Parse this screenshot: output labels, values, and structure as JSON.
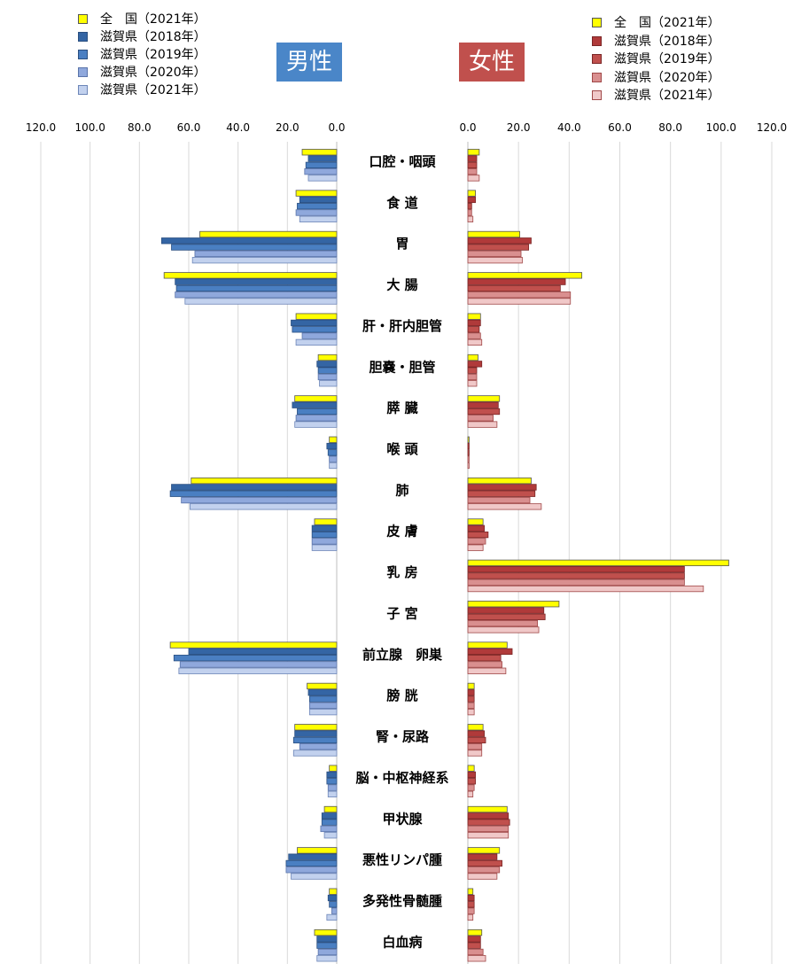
{
  "male_panel": {
    "title": "男性",
    "title_bg": "#4a86c8",
    "legend": [
      {
        "label": "全　国（2021年）",
        "color": "#ffff00",
        "border": "#555555"
      },
      {
        "label": "滋賀県（2018年）",
        "color": "#3465a4",
        "border": "#2a4f80"
      },
      {
        "label": "滋賀県（2019年）",
        "color": "#4a7fc2",
        "border": "#2a4f80"
      },
      {
        "label": "滋賀県（2020年）",
        "color": "#8fa8dc",
        "border": "#5a74aa"
      },
      {
        "label": "滋賀県（2021年）",
        "color": "#c2d1ee",
        "border": "#6d86b8"
      }
    ]
  },
  "female_panel": {
    "title": "女性",
    "title_bg": "#c0504d",
    "legend": [
      {
        "label": "全　国（2021年）",
        "color": "#ffff00",
        "border": "#555555"
      },
      {
        "label": "滋賀県（2018年）",
        "color": "#b03a3a",
        "border": "#7a2525"
      },
      {
        "label": "滋賀県（2019年）",
        "color": "#c0504d",
        "border": "#7a2525"
      },
      {
        "label": "滋賀県（2020年）",
        "color": "#d98f8f",
        "border": "#a04848"
      },
      {
        "label": "滋賀県（2021年）",
        "color": "#f0c8c8",
        "border": "#a04848"
      }
    ]
  },
  "chart_data": {
    "type": "bar",
    "orientation": "horizontal",
    "categories": [
      "口腔・咽頭",
      "食 道",
      "胃",
      "大 腸",
      "肝・肝内胆管",
      "胆嚢・胆管",
      "膵 臓",
      "喉 頭",
      "肺",
      "皮 膚",
      "乳 房",
      "子 宮",
      "前立腺　卵巣",
      "膀 胱",
      "腎・尿路",
      "脳・中枢神経系",
      "甲状腺",
      "悪性リンパ腫",
      "多発性骨髄腫",
      "白血病"
    ],
    "male": {
      "ticks": [
        "120.0",
        "100.0",
        "80.0",
        "60.0",
        "40.0",
        "20.0",
        "0.0"
      ],
      "xlim": [
        0,
        120
      ],
      "direction": "reversed",
      "series": [
        {
          "name": "全　国（2021年）",
          "values": [
            14,
            16.5,
            55.5,
            70,
            16.5,
            7.5,
            17,
            3,
            59,
            9,
            0,
            0,
            67.5,
            12,
            17,
            3,
            5,
            16,
            3,
            9
          ]
        },
        {
          "name": "滋賀県（2018年）",
          "values": [
            11.5,
            15,
            71,
            65.5,
            18.5,
            8,
            18,
            4,
            67,
            10,
            0,
            0,
            60,
            11.5,
            17,
            4,
            6,
            19.5,
            3.5,
            8
          ]
        },
        {
          "name": "滋賀県（2019年）",
          "values": [
            12.5,
            16,
            67,
            65,
            18,
            7.5,
            16,
            3.5,
            67.5,
            10,
            0,
            0,
            66,
            11,
            17.5,
            4,
            6,
            20.5,
            3,
            8
          ]
        },
        {
          "name": "滋賀県（2020年）",
          "values": [
            13,
            16.5,
            57.5,
            65.5,
            14,
            7.5,
            16.5,
            3,
            63,
            10,
            0,
            0,
            63.5,
            11,
            15,
            3.5,
            6.5,
            20.5,
            2,
            7.5
          ]
        },
        {
          "name": "滋賀県（2021年）",
          "values": [
            11.5,
            15,
            58.5,
            61.5,
            16.5,
            7,
            17,
            3,
            59.5,
            10,
            0,
            0,
            64,
            11,
            17.5,
            3.5,
            5,
            18.5,
            4,
            8
          ]
        }
      ]
    },
    "female": {
      "ticks": [
        "0.0",
        "20.0",
        "40.0",
        "60.0",
        "80.0",
        "100.0",
        "120.0"
      ],
      "xlim": [
        0,
        120
      ],
      "direction": "normal",
      "series": [
        {
          "name": "全　国（2021年）",
          "values": [
            4.5,
            3,
            20.5,
            45,
            5,
            4,
            12.5,
            0.5,
            25,
            6,
            103,
            36,
            15.5,
            2.5,
            6,
            2.5,
            15.5,
            12.5,
            2,
            5.5
          ]
        },
        {
          "name": "滋賀県（2018年）",
          "values": [
            3.5,
            3,
            25,
            38.5,
            5,
            5.5,
            12,
            0.5,
            27,
            6.5,
            85.5,
            30,
            17.5,
            2.5,
            6.5,
            3,
            16,
            11.5,
            2.5,
            5
          ]
        },
        {
          "name": "滋賀県（2019年）",
          "values": [
            3.5,
            1.5,
            24,
            36.5,
            4.5,
            3.5,
            12.5,
            0.5,
            26.5,
            8,
            85.5,
            30.5,
            13,
            2.5,
            7,
            3,
            16.5,
            13.5,
            2.5,
            5
          ]
        },
        {
          "name": "滋賀県（2020年）",
          "values": [
            3.5,
            1.5,
            21,
            40.5,
            5,
            3.5,
            10,
            0.5,
            24.5,
            7,
            85.5,
            27.5,
            13.5,
            2.5,
            5.5,
            2.5,
            16,
            12.5,
            2.5,
            6
          ]
        },
        {
          "name": "滋賀県（2021年）",
          "values": [
            4.5,
            2,
            21.5,
            40.5,
            5.5,
            3.5,
            11.5,
            0.5,
            29,
            6,
            93,
            28,
            15,
            2.5,
            5.5,
            2,
            16,
            11.5,
            2,
            7
          ]
        }
      ]
    }
  }
}
